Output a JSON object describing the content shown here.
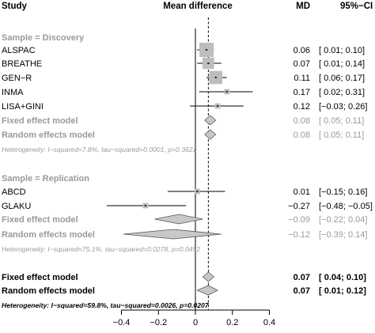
{
  "chart_data": {
    "type": "forest",
    "headers": {
      "study": "Study",
      "effect": "Mean difference",
      "md": "MD",
      "ci": "95%−CI"
    },
    "xlim": [
      -0.4,
      0.4
    ],
    "x_ticks": [
      "−0.4",
      "−0.2",
      "0",
      "0.2",
      "0.4"
    ],
    "x_tick_values": [
      -0.4,
      -0.2,
      0,
      0.2,
      0.4
    ],
    "reference_line": 0,
    "pooled_line": 0.07,
    "colors": {
      "grey": "#9a9a9a",
      "box": "#bdbdbd",
      "diamond": "#c8c8c8"
    },
    "groups": [
      {
        "name": "Sample = Discovery",
        "studies": [
          {
            "name": "ALSPAC",
            "md": 0.06,
            "lo": 0.01,
            "hi": 0.1,
            "md_text": "0.06",
            "ci_text": "[ 0.01;  0.10]",
            "weight": 1.0
          },
          {
            "name": "BREATHE",
            "md": 0.07,
            "lo": 0.01,
            "hi": 0.14,
            "md_text": "0.07",
            "ci_text": "[ 0.01;  0.14]",
            "weight": 0.75
          },
          {
            "name": "GEN−R",
            "md": 0.11,
            "lo": 0.06,
            "hi": 0.17,
            "md_text": "0.11",
            "ci_text": "[ 0.06;  0.17]",
            "weight": 0.9
          },
          {
            "name": "INMA",
            "md": 0.17,
            "lo": 0.02,
            "hi": 0.31,
            "md_text": "0.17",
            "ci_text": "[ 0.02;  0.31]",
            "weight": 0.2
          },
          {
            "name": "LISA+GINI",
            "md": 0.12,
            "lo": -0.03,
            "hi": 0.26,
            "md_text": "0.12",
            "ci_text": "[−0.03;  0.26]",
            "weight": 0.2
          }
        ],
        "fixed": {
          "label": "Fixed effect model",
          "md": 0.08,
          "lo": 0.05,
          "hi": 0.11,
          "md_text": "0.08",
          "ci_text": "[ 0.05;  0.11]"
        },
        "random": {
          "label": "Random effects model",
          "md": 0.08,
          "lo": 0.05,
          "hi": 0.11,
          "md_text": "0.08",
          "ci_text": "[ 0.05;  0.11]"
        },
        "heterogeneity": "Heterogeneity: I−squared=7.8%, tau−squared=0.0001, p=0.3621"
      },
      {
        "name": "Sample = Replication",
        "studies": [
          {
            "name": "ABCD",
            "md": 0.01,
            "lo": -0.15,
            "hi": 0.16,
            "md_text": "0.01",
            "ci_text": "[−0.15;  0.16]",
            "weight": 0.2
          },
          {
            "name": "GLAKU",
            "md": -0.27,
            "lo": -0.48,
            "hi": -0.05,
            "md_text": "−0.27",
            "ci_text": "[−0.48; −0.05]",
            "weight": 0.2
          }
        ],
        "fixed": {
          "label": "Fixed effect model",
          "md": -0.09,
          "lo": -0.22,
          "hi": 0.04,
          "md_text": "−0.09",
          "ci_text": "[−0.22;  0.04]"
        },
        "random": {
          "label": "Random effects model",
          "md": -0.12,
          "lo": -0.39,
          "hi": 0.14,
          "md_text": "−0.12",
          "ci_text": "[−0.39;  0.14]"
        },
        "heterogeneity": "Heterogeneity: I−squared=75.1%, tau−squared=0.0278, p=0.0452"
      }
    ],
    "overall": {
      "fixed": {
        "label": "Fixed effect model",
        "md": 0.07,
        "lo": 0.04,
        "hi": 0.1,
        "md_text": "0.07",
        "ci_text": "[ 0.04;  0.10]"
      },
      "random": {
        "label": "Random effects model",
        "md": 0.07,
        "lo": 0.01,
        "hi": 0.12,
        "md_text": "0.07",
        "ci_text": "[ 0.01;  0.12]"
      },
      "heterogeneity": "Heterogeneity: I−squared=59.8%, tau−squared=0.0026, p=0.0207"
    }
  }
}
